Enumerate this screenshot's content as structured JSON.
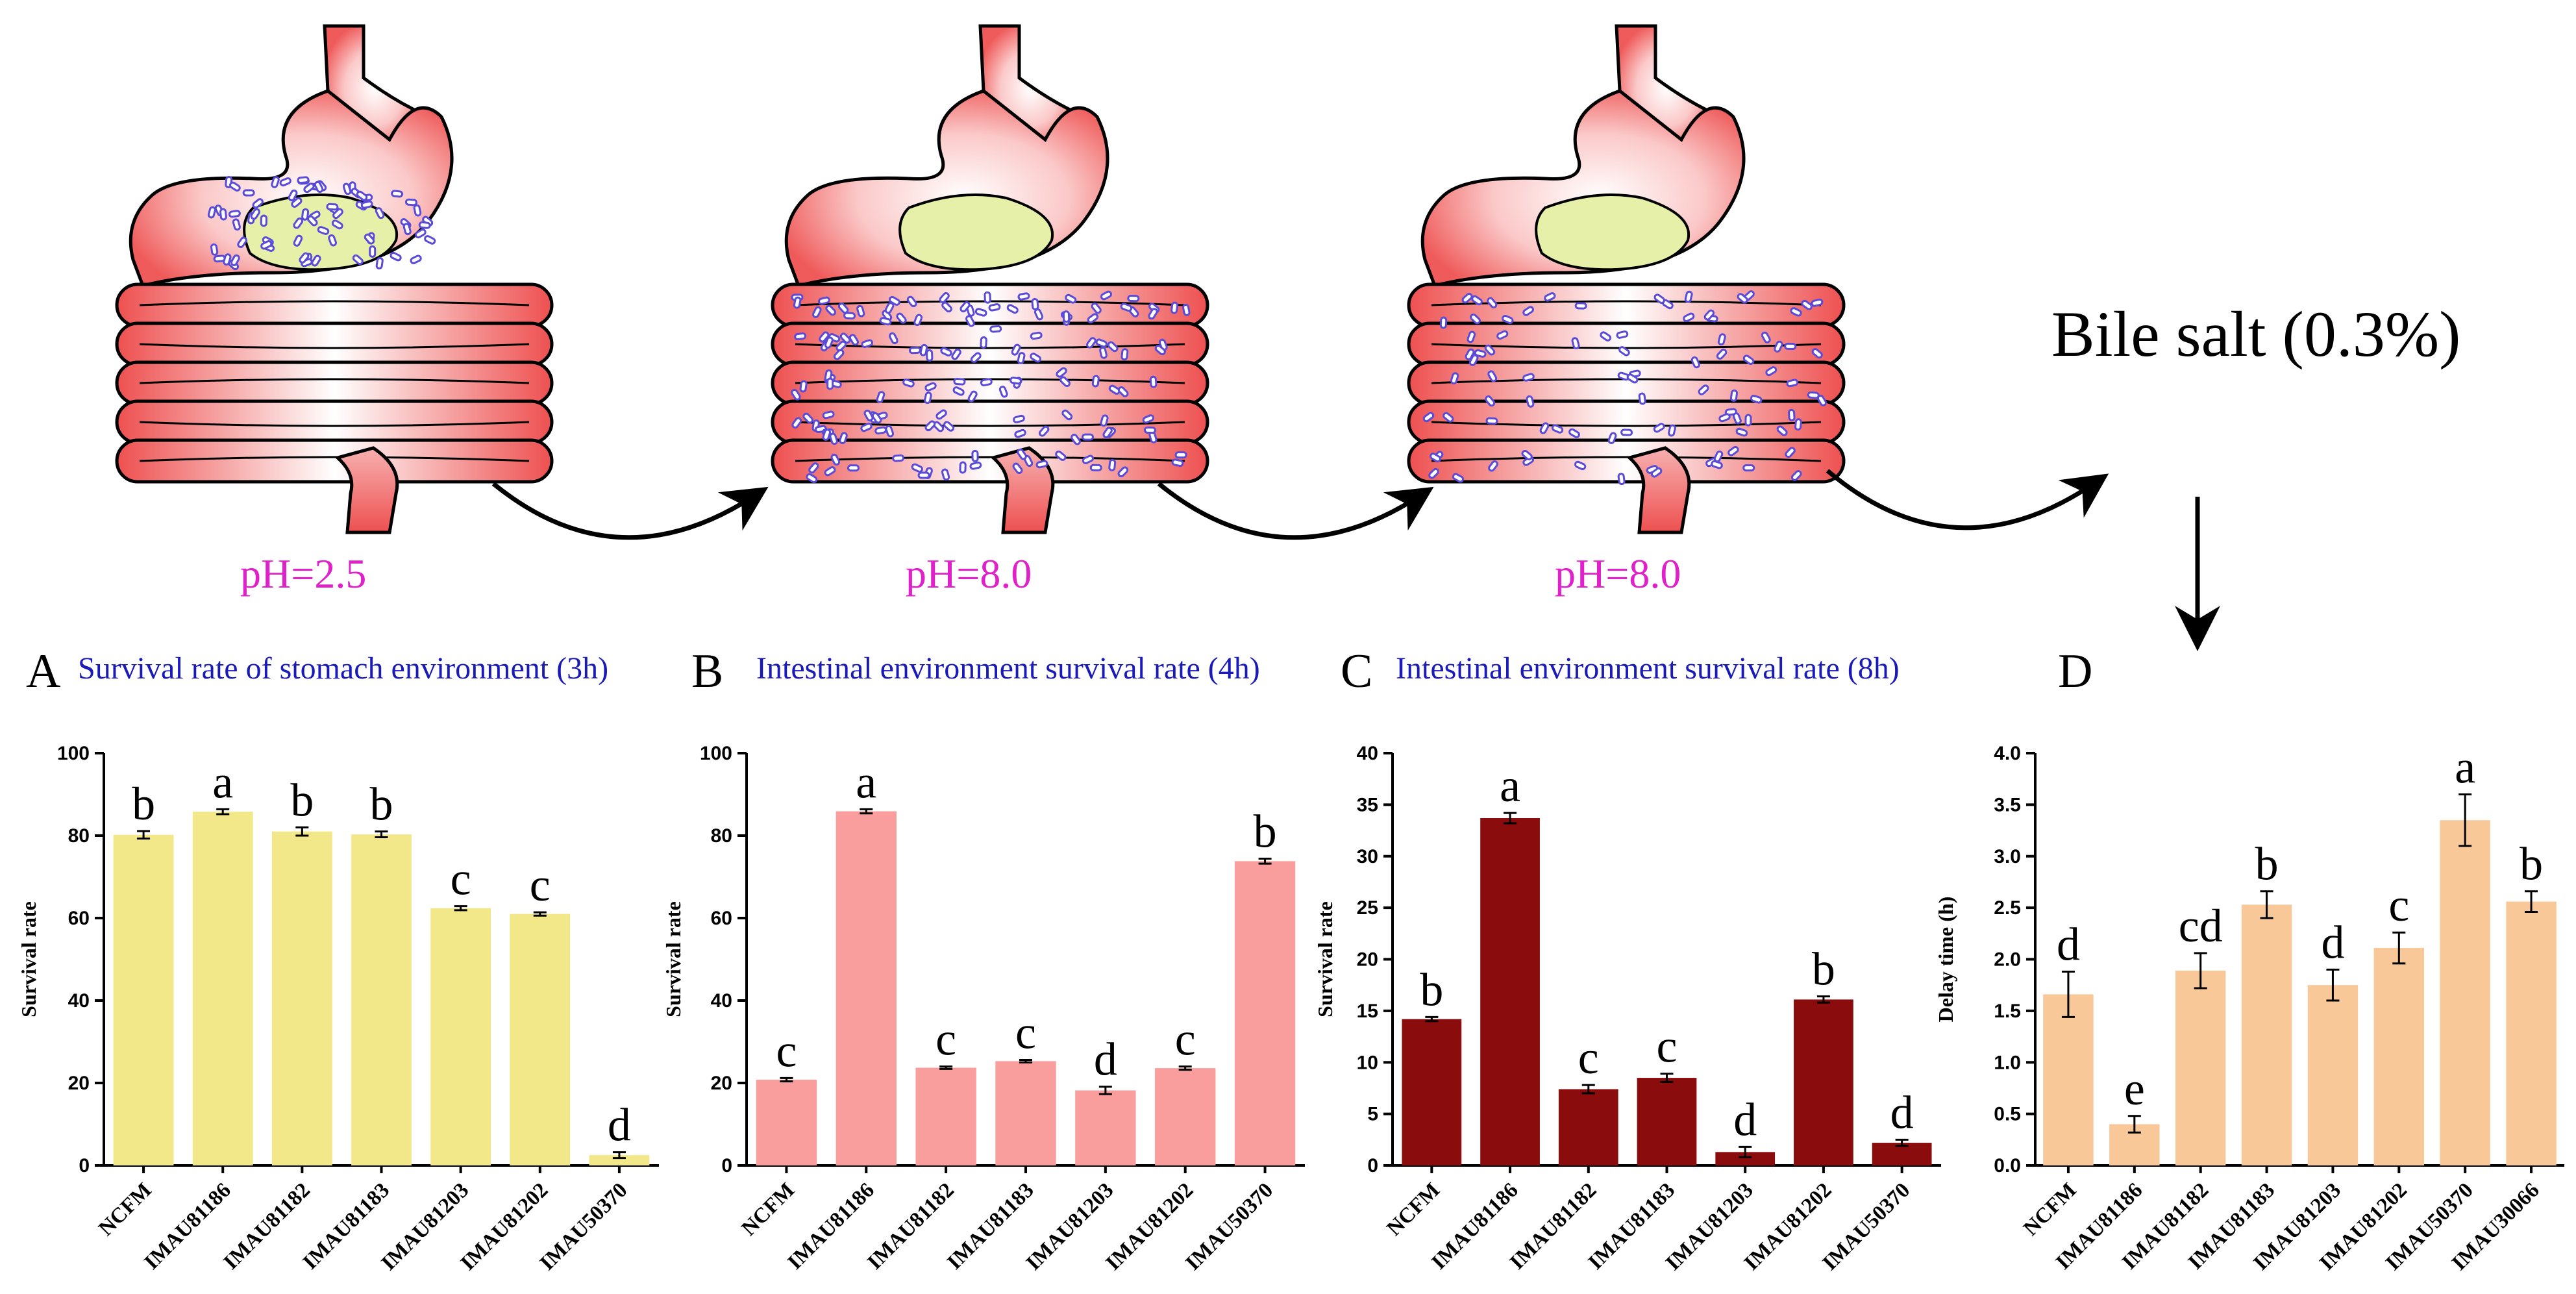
{
  "labels": {
    "ph1": "pH=2.5",
    "ph2": "pH=8.0",
    "ph3": "pH=8.0",
    "bile": "Bile salt (0.3%)"
  },
  "colors": {
    "stomach": "#f06c6c",
    "chyme": "#e6f0a8",
    "bacteria": "#5a4ad8",
    "ph_text": "#e020c8",
    "title_text": "#1a1ab8"
  },
  "chart_data": [
    {
      "panel": "A",
      "type": "bar",
      "title": "Survival rate of stomach environment (3h)",
      "ylabel": "Survival rate",
      "xlabel": "",
      "ylim": [
        0,
        100
      ],
      "ytick_values": [
        0,
        20,
        40,
        60,
        80,
        100
      ],
      "ytick_labels": [
        "0",
        "20",
        "40",
        "60",
        "80",
        "100"
      ],
      "color": "#f2e88a",
      "categories": [
        "NCFM",
        "IMAU81186",
        "IMAU81182",
        "IMAU81183",
        "IMAU81203",
        "IMAU81202",
        "IMAU50370"
      ],
      "values": [
        80.2,
        85.8,
        81.0,
        80.3,
        62.4,
        61.0,
        2.5
      ],
      "errors": [
        0.9,
        0.6,
        1.0,
        0.7,
        0.5,
        0.4,
        0.7
      ],
      "significance": [
        "b",
        "a",
        "b",
        "b",
        "c",
        "c",
        "d"
      ]
    },
    {
      "panel": "B",
      "type": "bar",
      "title": "Intestinal environment survival rate (4h)",
      "ylabel": "Survival rate",
      "xlabel": "",
      "ylim": [
        0,
        100
      ],
      "ytick_values": [
        0,
        20,
        40,
        60,
        80,
        100
      ],
      "ytick_labels": [
        "0",
        "20",
        "40",
        "60",
        "80",
        "100"
      ],
      "color": "#f99d9d",
      "categories": [
        "NCFM",
        "IMAU81186",
        "IMAU81182",
        "IMAU81183",
        "IMAU81203",
        "IMAU81202",
        "IMAU50370"
      ],
      "values": [
        20.8,
        85.9,
        23.7,
        25.3,
        18.2,
        23.6,
        73.8
      ],
      "errors": [
        0.4,
        0.5,
        0.3,
        0.3,
        0.9,
        0.4,
        0.6
      ],
      "significance": [
        "c",
        "a",
        "c",
        "c",
        "d",
        "c",
        "b"
      ]
    },
    {
      "panel": "C",
      "type": "bar",
      "title": "Intestinal environment survival rate (8h)",
      "ylabel": "Survival rate",
      "xlabel": "",
      "ylim": [
        0,
        40
      ],
      "ytick_values": [
        0,
        5,
        10,
        15,
        20,
        25,
        30,
        35,
        40
      ],
      "ytick_labels": [
        "0",
        "5",
        "10",
        "15",
        "20",
        "25",
        "30",
        "35",
        "40"
      ],
      "color": "#8b0c0c",
      "categories": [
        "NCFM",
        "IMAU81186",
        "IMAU81182",
        "IMAU81183",
        "IMAU81203",
        "IMAU81202",
        "IMAU50370"
      ],
      "values": [
        14.2,
        33.7,
        7.4,
        8.5,
        1.3,
        16.1,
        2.2
      ],
      "errors": [
        0.2,
        0.5,
        0.4,
        0.4,
        0.5,
        0.3,
        0.3
      ],
      "significance": [
        "b",
        "a",
        "c",
        "c",
        "d",
        "b",
        "d"
      ]
    },
    {
      "panel": "D",
      "type": "bar",
      "title": "",
      "ylabel": "Delay time (h)",
      "xlabel": "",
      "ylim": [
        0,
        4
      ],
      "ytick_values": [
        0,
        0.5,
        1,
        1.5,
        2,
        2.5,
        3,
        3.5,
        4
      ],
      "ytick_labels": [
        "0.0",
        "0.5",
        "1.0",
        "1.5",
        "2.0",
        "2.5",
        "3.0",
        "3.5",
        "4.0"
      ],
      "color": "#f9c898",
      "categories": [
        "NCFM",
        "IMAU81186",
        "IMAU81182",
        "IMAU81183",
        "IMAU81203",
        "IMAU81202",
        "IMAU50370",
        "IMAU30066"
      ],
      "values": [
        1.66,
        0.4,
        1.89,
        2.53,
        1.75,
        2.11,
        3.35,
        2.56
      ],
      "errors": [
        0.22,
        0.08,
        0.17,
        0.13,
        0.15,
        0.15,
        0.25,
        0.1
      ],
      "significance": [
        "d",
        "e",
        "cd",
        "b",
        "d",
        "c",
        "a",
        "b"
      ]
    }
  ]
}
